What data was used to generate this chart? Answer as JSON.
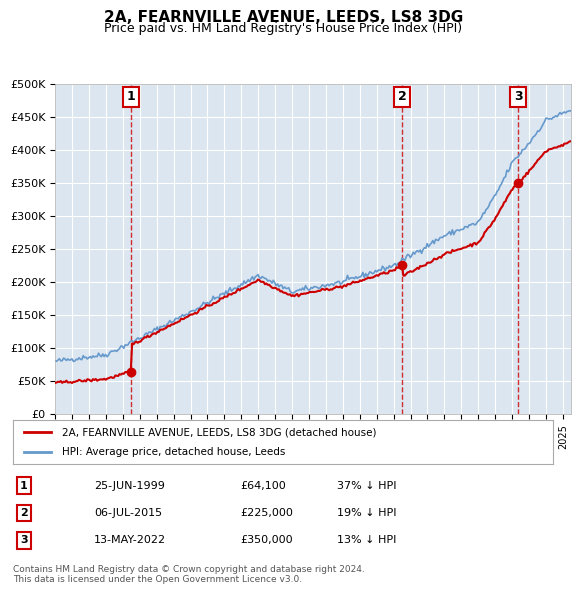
{
  "title": "2A, FEARNVILLE AVENUE, LEEDS, LS8 3DG",
  "subtitle": "Price paid vs. HM Land Registry's House Price Index (HPI)",
  "background_color": "#dce6f0",
  "plot_background": "#dce6f0",
  "ylabel_color": "#000000",
  "hpi_color": "#6699cc",
  "price_color": "#cc0000",
  "sale_marker_color": "#cc0000",
  "vline_color": "#cc0000",
  "ylim": [
    0,
    500000
  ],
  "yticks": [
    0,
    50000,
    100000,
    150000,
    200000,
    250000,
    300000,
    350000,
    400000,
    450000,
    500000
  ],
  "ytick_labels": [
    "£0",
    "£50K",
    "£100K",
    "£150K",
    "£200K",
    "£250K",
    "£300K",
    "£350K",
    "£400K",
    "£450K",
    "£500K"
  ],
  "sale_dates": [
    1999.48,
    2015.51,
    2022.36
  ],
  "sale_prices": [
    64100,
    225000,
    350000
  ],
  "sale_labels": [
    "1",
    "2",
    "3"
  ],
  "legend_entries": [
    "2A, FEARNVILLE AVENUE, LEEDS, LS8 3DG (detached house)",
    "HPI: Average price, detached house, Leeds"
  ],
  "table_rows": [
    [
      "1",
      "25-JUN-1999",
      "£64,100",
      "37% ↓ HPI"
    ],
    [
      "2",
      "06-JUL-2015",
      "£225,000",
      "19% ↓ HPI"
    ],
    [
      "3",
      "13-MAY-2022",
      "£350,000",
      "13% ↓ HPI"
    ]
  ],
  "footnote": "Contains HM Land Registry data © Crown copyright and database right 2024.\nThis data is licensed under the Open Government Licence v3.0.",
  "xmin": 1995.0,
  "xmax": 2025.5
}
